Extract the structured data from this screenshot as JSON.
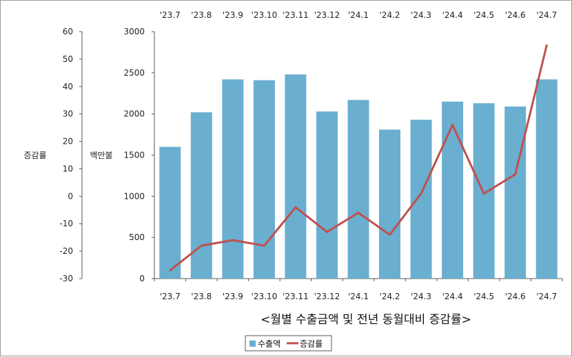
{
  "chart_data": {
    "type": "bar",
    "title": "<월별 수출금액 및 전년 동월대비 증감률>",
    "categories": [
      "'23.7",
      "'23.8",
      "'23.9",
      "'23.10",
      "'23.11",
      "'23.12",
      "'24.1",
      "'24.2",
      "'24.3",
      "'24.4",
      "'24.5",
      "'24.6",
      "'24.7"
    ],
    "series": [
      {
        "name": "수출액",
        "type": "bar",
        "axis": "left",
        "color": "#6aaed0",
        "values": [
          1600,
          2020,
          2420,
          2410,
          2480,
          2030,
          2170,
          1810,
          1930,
          2150,
          2130,
          2090,
          2420
        ]
      },
      {
        "name": "증감률",
        "type": "line",
        "axis": "far-left",
        "color": "#c0504d",
        "values": [
          -27,
          -18,
          -16,
          -18,
          -4,
          -13,
          -6,
          -14,
          1,
          26,
          1,
          8,
          55
        ]
      }
    ],
    "left_axis": {
      "label": "백만불",
      "ylim": [
        0,
        3000
      ],
      "ticks": [
        0,
        500,
        1000,
        1500,
        2000,
        2500,
        3000
      ]
    },
    "far_left_axis": {
      "label": "증감률",
      "ylim": [
        -30,
        60
      ],
      "ticks": [
        -30,
        -20,
        -10,
        0,
        10,
        20,
        30,
        40,
        50,
        60
      ]
    },
    "legend": {
      "placement": "bottom-left",
      "entries": [
        "수출액",
        "증감률"
      ]
    },
    "grid": false,
    "top_category_labels": true
  }
}
